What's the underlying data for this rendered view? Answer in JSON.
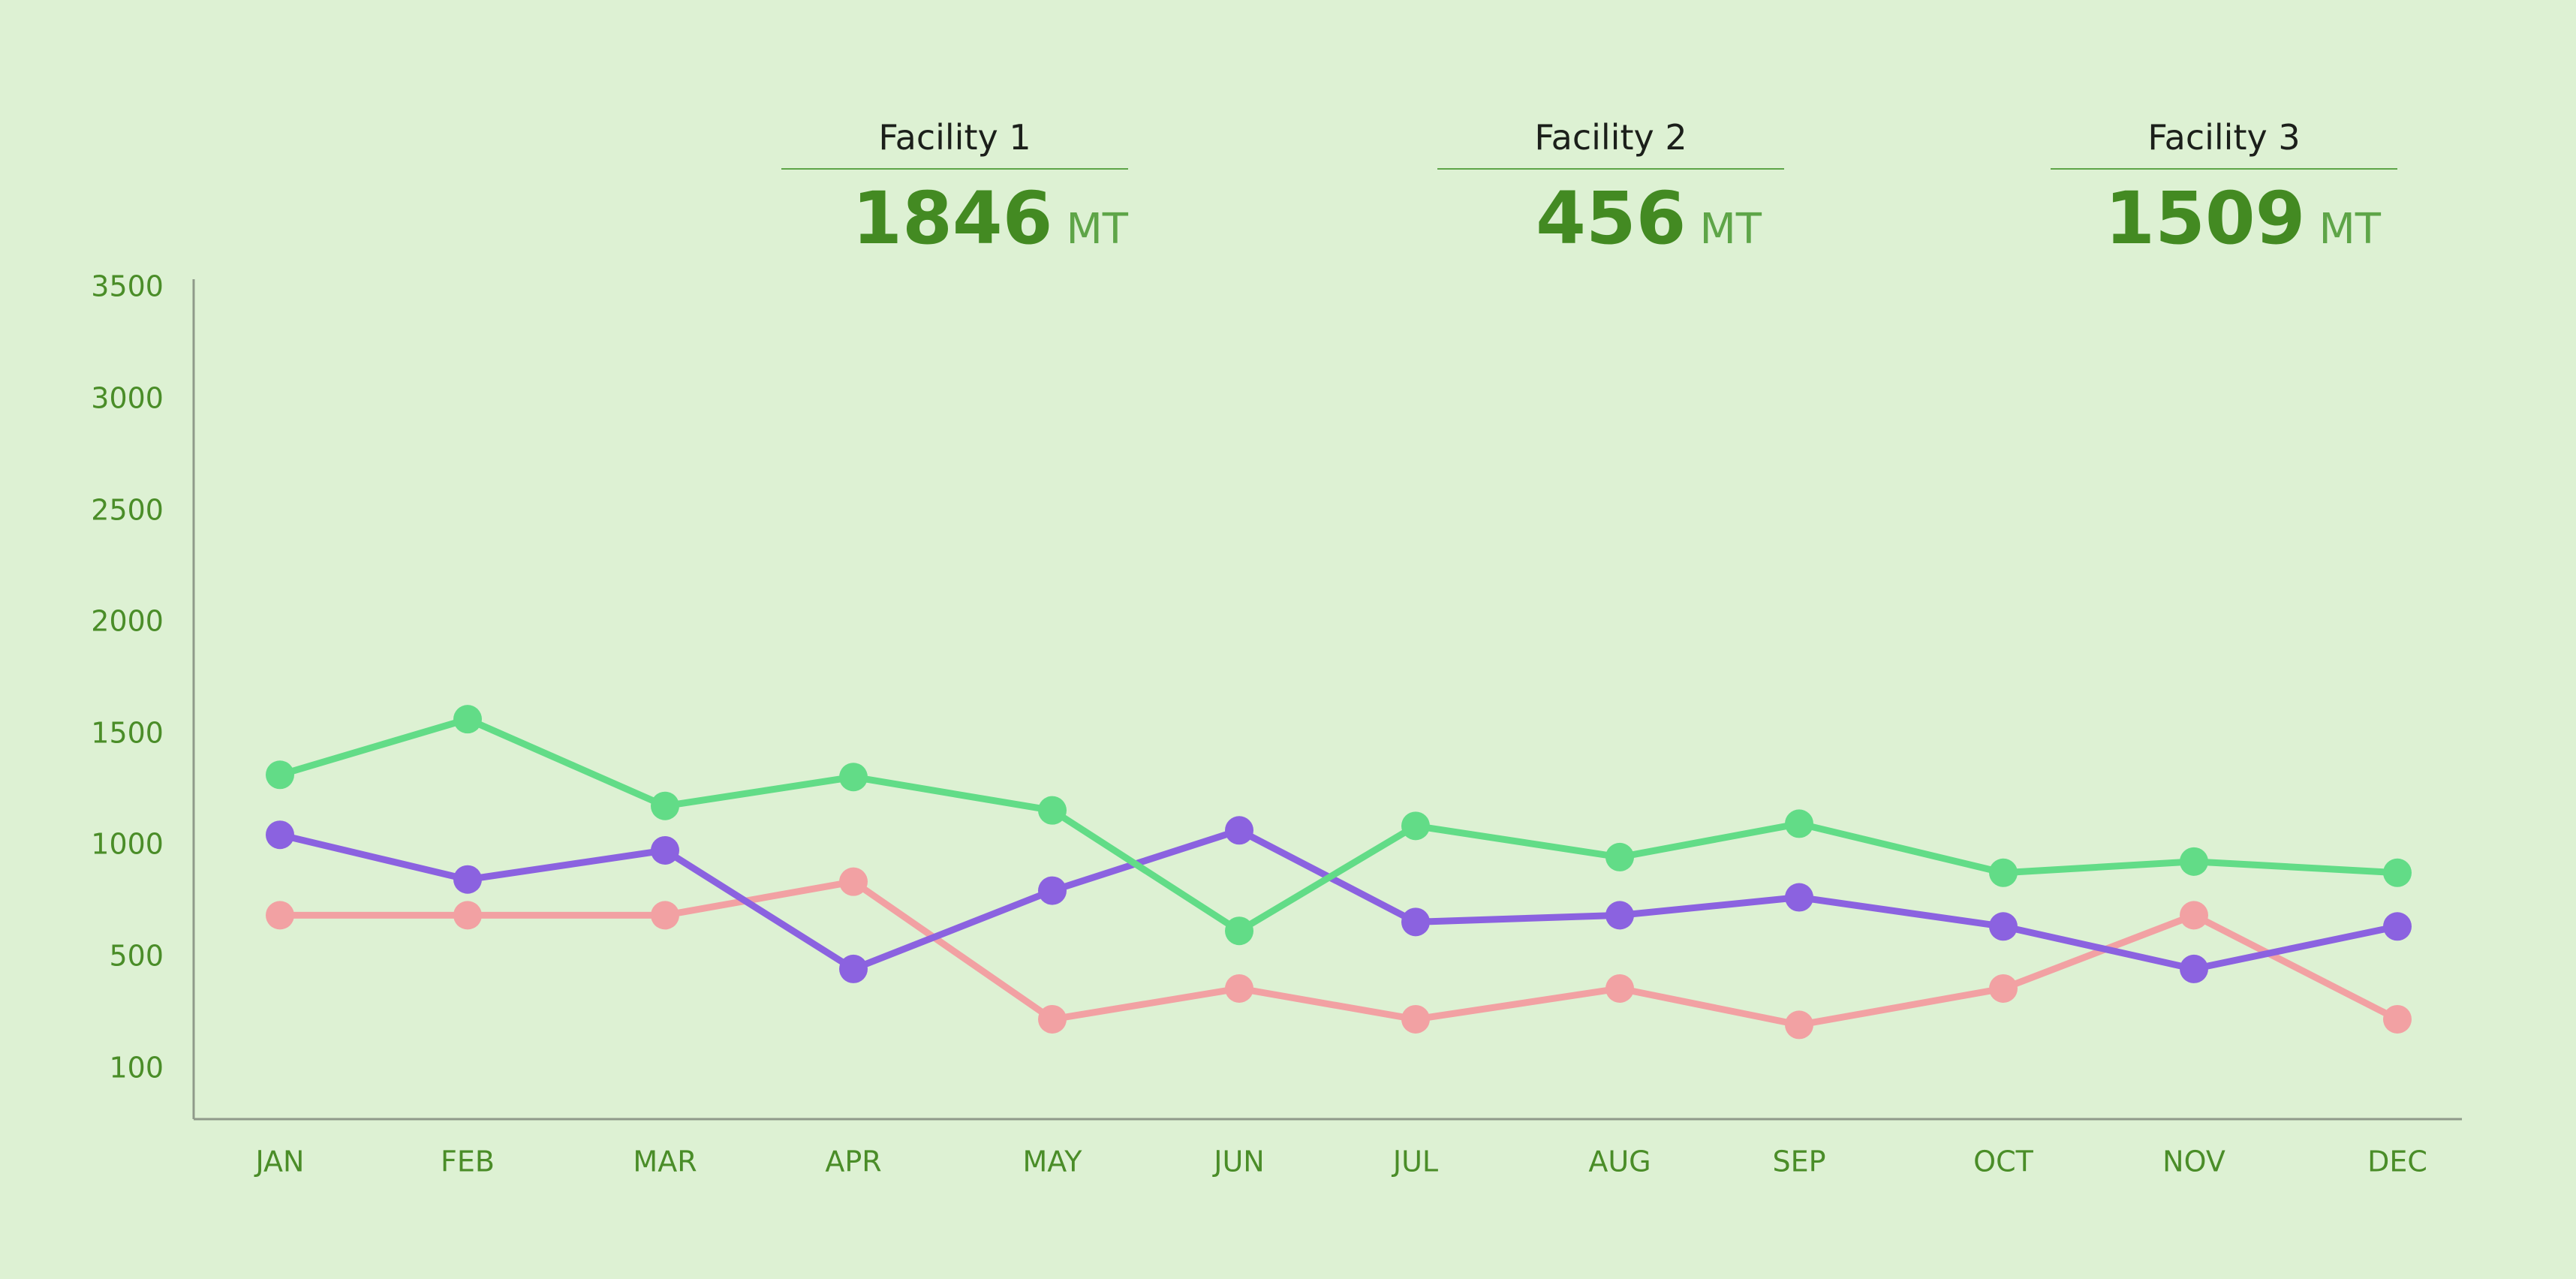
{
  "summary": [
    {
      "label": "Facility 1",
      "value": "1846",
      "unit": "MT"
    },
    {
      "label": "Facility 2",
      "value": "456",
      "unit": "MT"
    },
    {
      "label": "Facility 3",
      "value": "1509",
      "unit": "MT"
    }
  ],
  "chart_data": {
    "type": "line",
    "title": "",
    "xlabel": "",
    "ylabel": "",
    "categories": [
      "JAN",
      "FEB",
      "MAR",
      "APR",
      "MAY",
      "JUN",
      "JUL",
      "AUG",
      "SEP",
      "OCT",
      "NOV",
      "DEC"
    ],
    "y_ticks": [
      100,
      500,
      1000,
      1500,
      2000,
      2500,
      3000,
      3500
    ],
    "ylim": [
      0,
      3500
    ],
    "grid": false,
    "legend": "none",
    "series": [
      {
        "color": "#62dc87",
        "values": [
          1320,
          1570,
          1180,
          1310,
          1160,
          620,
          1090,
          950,
          1100,
          880,
          930,
          880
        ]
      },
      {
        "color": "#8b62e0",
        "values": [
          1050,
          850,
          980,
          460,
          800,
          1070,
          660,
          690,
          770,
          640,
          460,
          640
        ]
      },
      {
        "color": "#f2a1a3",
        "values": [
          690,
          690,
          690,
          840,
          280,
          390,
          280,
          390,
          260,
          390,
          690,
          280
        ]
      }
    ]
  },
  "colors": {
    "background": "#ddf1d3",
    "text_accent": "#438a22",
    "axis_labels": "#4a8d28",
    "axis_line": "#8f9a8a"
  }
}
